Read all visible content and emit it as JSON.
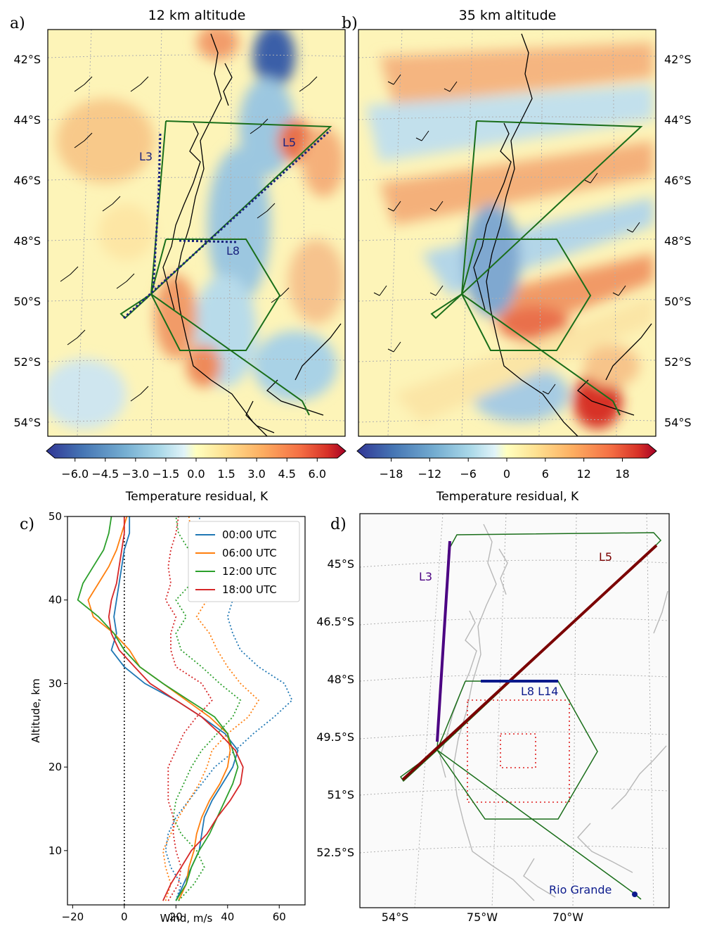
{
  "panels": {
    "a": {
      "letter": "a)",
      "title": "12 km altitude",
      "lat_labels": [
        "42°S",
        "44°S",
        "46°S",
        "48°S",
        "50°S",
        "52°S",
        "54°S"
      ],
      "route_labels": [
        "L3",
        "L5",
        "L8"
      ],
      "colorbar": {
        "ticks": [
          "−6.0",
          "−4.5",
          "−3.0",
          "−1.5",
          "0.0",
          "1.5",
          "3.0",
          "4.5",
          "6.0"
        ],
        "range": [
          -7,
          7
        ],
        "label": "Temperature residual, K"
      }
    },
    "b": {
      "letter": "b)",
      "title": "35 km altitude",
      "lat_labels": [
        "42°S",
        "44°S",
        "46°S",
        "48°S",
        "50°S",
        "52°S",
        "54°S"
      ],
      "colorbar": {
        "ticks": [
          "−18",
          "−12",
          "−6",
          "0",
          "6",
          "12",
          "18"
        ],
        "range": [
          -22,
          22
        ],
        "label": "Temperature residual, K"
      }
    },
    "d": {
      "letter": "d)",
      "lat_labels": [
        "45°S",
        "46.5°S",
        "48°S",
        "49.5°S",
        "51°S",
        "52.5°S"
      ],
      "lon_labels": [
        "54°S",
        "75°W",
        "70°W"
      ],
      "route_labels": [
        "L3",
        "L5",
        "L8 L14"
      ],
      "site_label": "Rio Grande"
    }
  },
  "chart_data": {
    "type": "line",
    "letter": "c)",
    "xlabel": "Wind, m/s",
    "ylabel": "Altitude, km",
    "xlim": [
      -22,
      70
    ],
    "ylim": [
      3.5,
      50
    ],
    "xticks": [
      -20,
      0,
      20,
      40,
      60
    ],
    "yticks": [
      10,
      20,
      30,
      40,
      50
    ],
    "grid": false,
    "legend_position": "top-right",
    "zero_line": true,
    "y_levels": [
      4,
      6,
      8,
      10,
      12,
      14,
      16,
      18,
      20,
      22,
      24,
      26,
      28,
      30,
      32,
      34,
      36,
      38,
      40,
      42,
      44,
      46,
      48,
      50
    ],
    "series": [
      {
        "name": "00:00 UTC",
        "color": "#1f77b4",
        "solid": [
          20,
          23,
          26,
          29,
          30,
          31,
          34,
          38,
          42,
          44,
          39,
          30,
          20,
          8,
          0,
          -5,
          -3,
          -4,
          -3,
          -2,
          -1,
          0,
          2,
          2
        ],
        "dotted": [
          20,
          22,
          18,
          16,
          17,
          20,
          25,
          30,
          35,
          43,
          50,
          58,
          65,
          62,
          52,
          45,
          42,
          40,
          42,
          38,
          36,
          34,
          30,
          29
        ]
      },
      {
        "name": "06:00 UTC",
        "color": "#ff7f0e",
        "solid": [
          21,
          24,
          25,
          27,
          28,
          30,
          33,
          37,
          40,
          41,
          40,
          33,
          24,
          15,
          6,
          2,
          -4,
          -12,
          -14,
          -10,
          -6,
          -3,
          -1,
          1
        ],
        "dotted": [
          16,
          18,
          16,
          15,
          18,
          21,
          25,
          29,
          32,
          34,
          40,
          48,
          52,
          45,
          40,
          36,
          33,
          28,
          32,
          33,
          30,
          28,
          26,
          25
        ]
      },
      {
        "name": "12:00 UTC",
        "color": "#2ca02c",
        "solid": [
          20,
          24,
          26,
          29,
          33,
          36,
          39,
          42,
          44,
          42,
          40,
          35,
          25,
          15,
          6,
          0,
          -4,
          -10,
          -18,
          -16,
          -12,
          -8,
          -6,
          -5
        ],
        "dotted": [
          21,
          27,
          31,
          28,
          22,
          19,
          20,
          23,
          26,
          30,
          36,
          42,
          45,
          37,
          30,
          22,
          20,
          24,
          20,
          26,
          30,
          25,
          21,
          20
        ]
      },
      {
        "name": "18:00 UTC",
        "color": "#d62728",
        "solid": [
          15,
          18,
          22,
          26,
          32,
          36,
          41,
          45,
          46,
          43,
          37,
          30,
          20,
          10,
          4,
          -2,
          -5,
          -6,
          -5,
          -3,
          -2,
          -1,
          0,
          0
        ],
        "dotted": [
          17,
          21,
          22,
          20,
          19,
          19,
          17,
          17,
          17,
          20,
          23,
          28,
          34,
          30,
          20,
          18,
          18,
          20,
          16,
          18,
          17,
          18,
          20,
          21
        ]
      }
    ]
  }
}
